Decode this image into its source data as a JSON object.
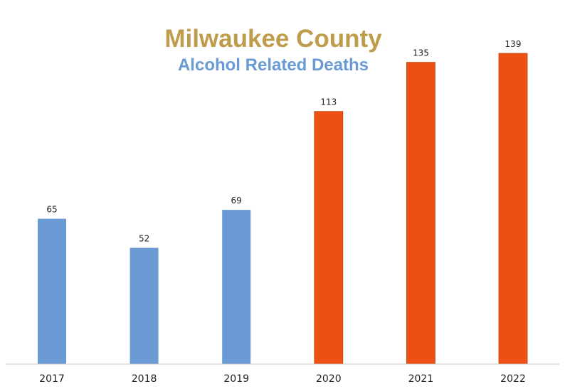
{
  "chart_data": {
    "type": "bar",
    "title": "Milwaukee County",
    "subtitle": "Alcohol Related Deaths",
    "xlabel": "",
    "ylabel": "",
    "categories": [
      "2017",
      "2018",
      "2019",
      "2020",
      "2021",
      "2022"
    ],
    "values": [
      65,
      52,
      69,
      113,
      135,
      139
    ],
    "bar_colors": [
      "#6a9ad3",
      "#6a9ad3",
      "#6a9ad3",
      "#ec5015",
      "#ec5015",
      "#ec5015"
    ],
    "title_color": "#bf9c4b",
    "subtitle_color": "#6a9ad3",
    "ylim": [
      0,
      139
    ],
    "grid": false,
    "legend": "none"
  }
}
